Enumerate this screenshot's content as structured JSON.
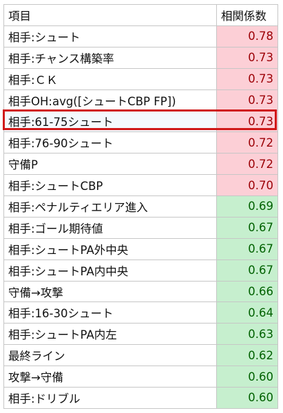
{
  "header": {
    "item": "項目",
    "value": "相関係数"
  },
  "colors": {
    "high_bg": "#fccfd6",
    "high_fg": "#9c0006",
    "mid_bg": "#c6efce",
    "mid_fg": "#006100",
    "selected_bg": "#f4f9fd",
    "highlight_border": "#d01818"
  },
  "rows": [
    {
      "item": "相手:シュート",
      "value": "0.78",
      "level": "high"
    },
    {
      "item": "相手:チャンス構築率",
      "value": "0.73",
      "level": "high"
    },
    {
      "item": "相手:ＣＫ",
      "value": "0.73",
      "level": "high"
    },
    {
      "item": "相手OH:avg([シュートCBP FP])",
      "value": "0.73",
      "level": "high"
    },
    {
      "item": "相手:61-75シュート",
      "value": "0.73",
      "level": "high",
      "selected": true
    },
    {
      "item": "相手:76-90シュート",
      "value": "0.72",
      "level": "high"
    },
    {
      "item": "守備P",
      "value": "0.72",
      "level": "high"
    },
    {
      "item": "相手:シュートCBP",
      "value": "0.70",
      "level": "high"
    },
    {
      "item": "相手:ペナルティエリア進入",
      "value": "0.69",
      "level": "mid"
    },
    {
      "item": "相手:ゴール期待値",
      "value": "0.67",
      "level": "mid"
    },
    {
      "item": "相手:シュートPA外中央",
      "value": "0.67",
      "level": "mid"
    },
    {
      "item": "相手:シュートPA内中央",
      "value": "0.67",
      "level": "mid"
    },
    {
      "item": "守備→攻撃",
      "value": "0.66",
      "level": "mid"
    },
    {
      "item": "相手:16-30シュート",
      "value": "0.64",
      "level": "mid"
    },
    {
      "item": "相手:シュートPA内左",
      "value": "0.63",
      "level": "mid"
    },
    {
      "item": "最終ライン",
      "value": "0.62",
      "level": "mid"
    },
    {
      "item": "攻撃→守備",
      "value": "0.60",
      "level": "mid"
    },
    {
      "item": "相手:ドリブル",
      "value": "0.60",
      "level": "mid"
    }
  ]
}
